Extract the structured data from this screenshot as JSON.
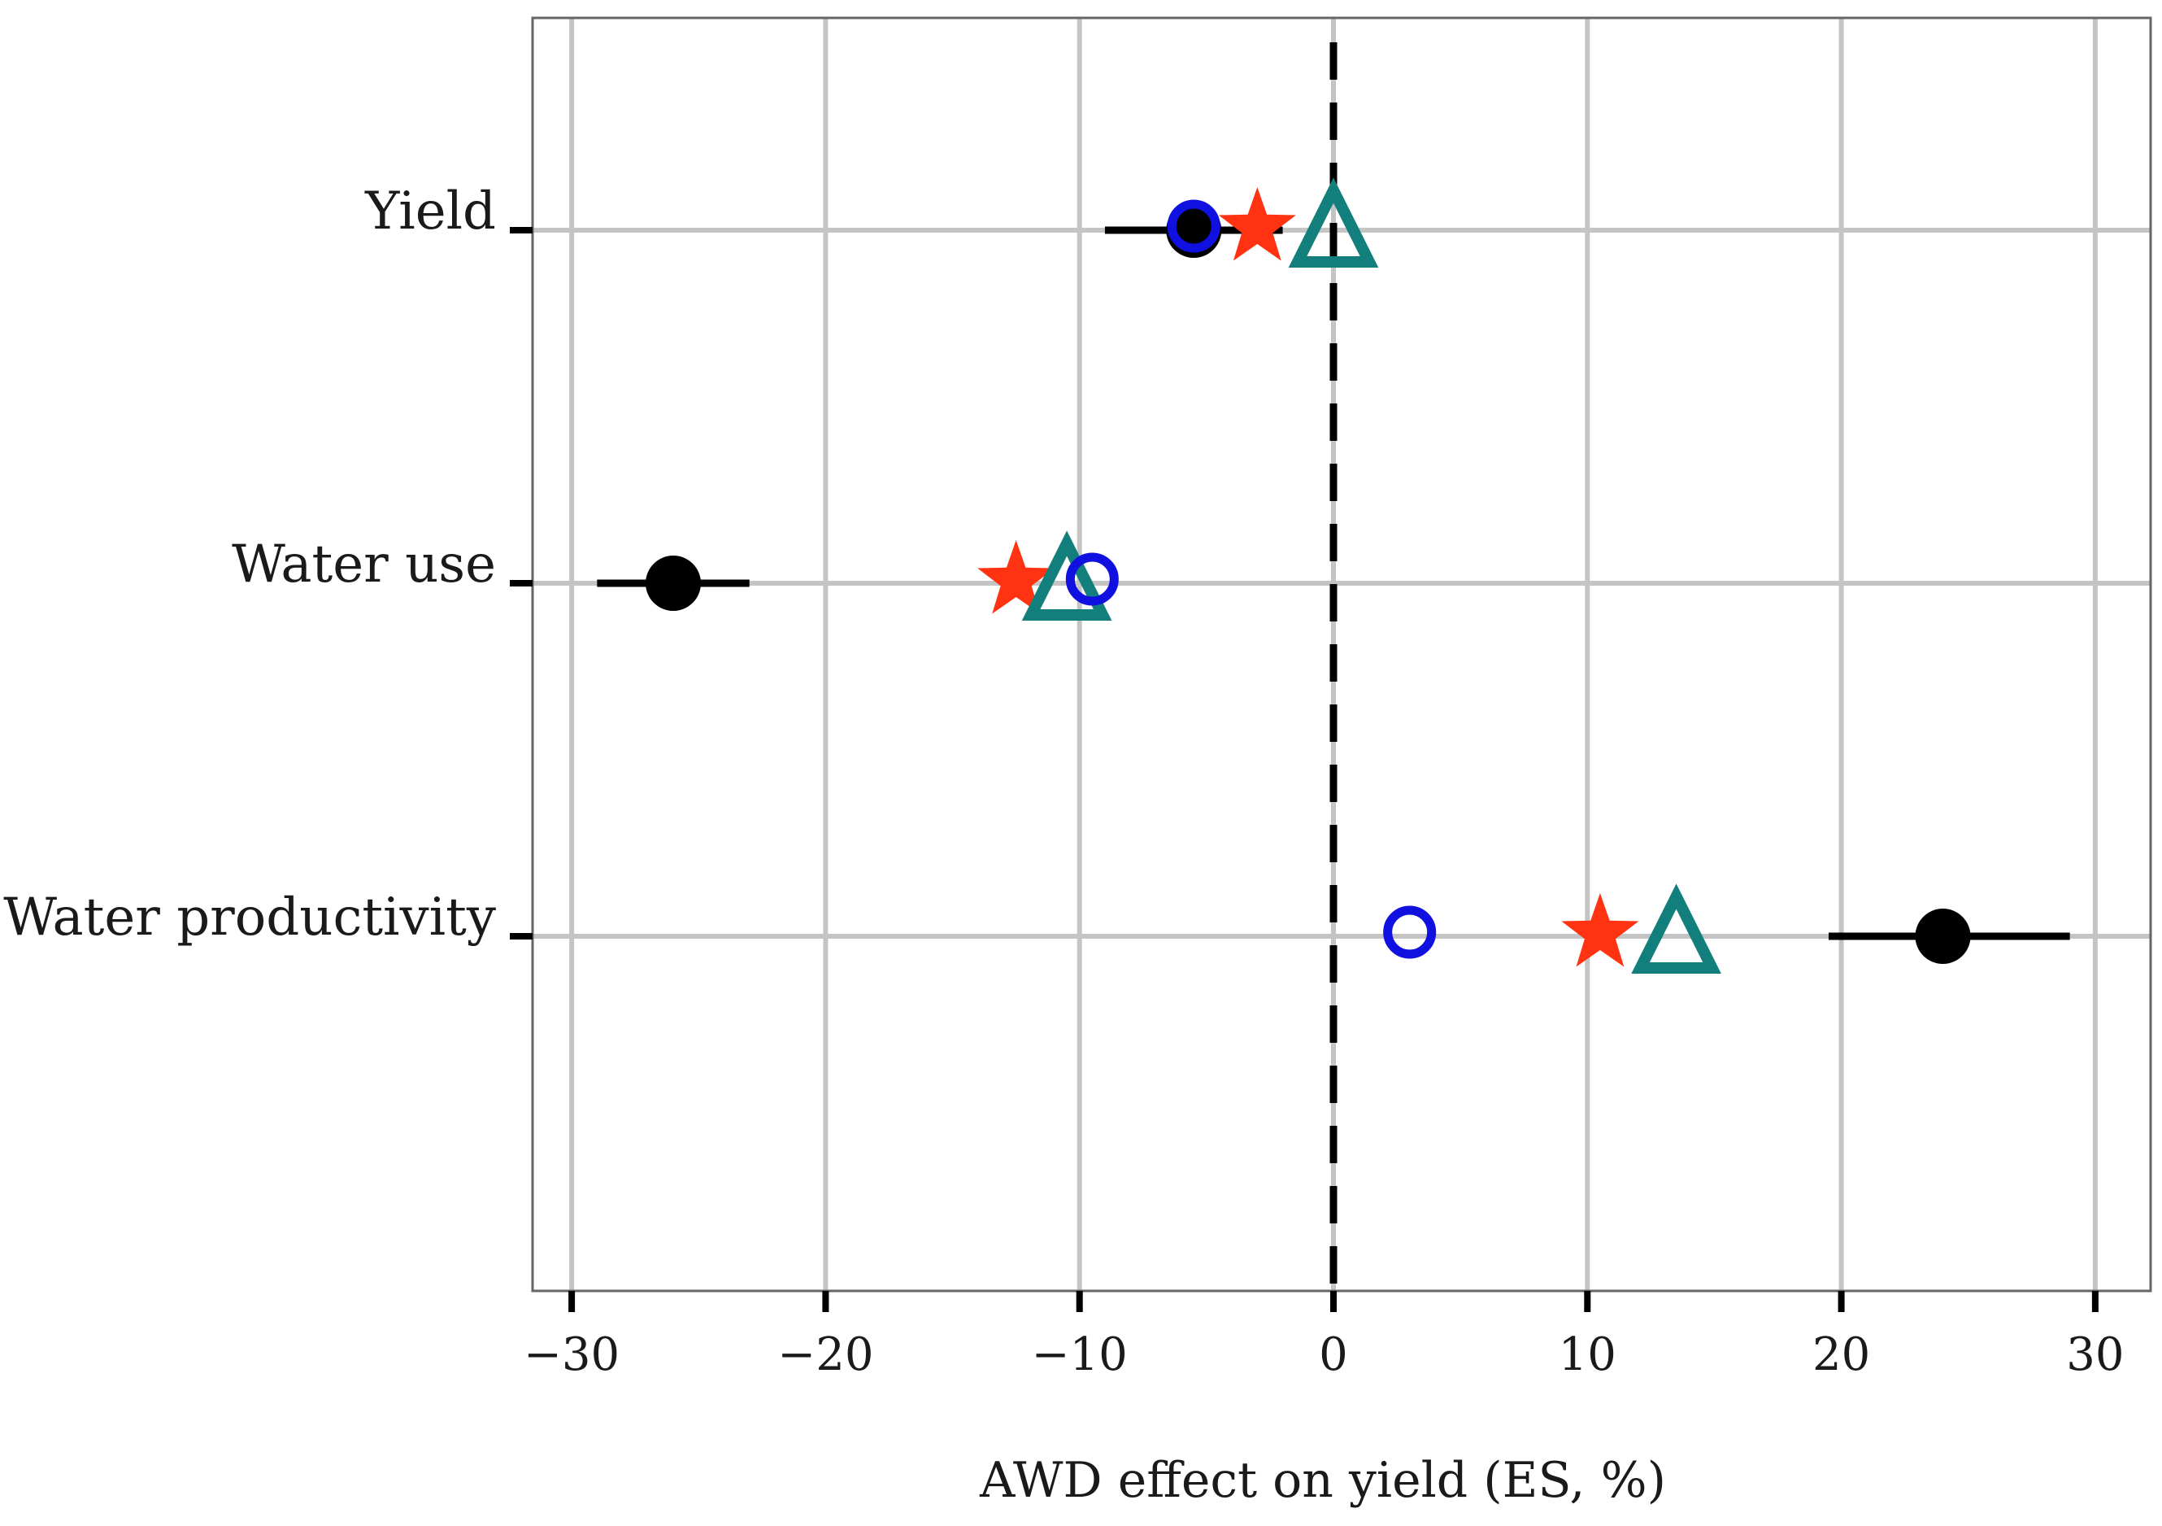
{
  "chart_data": {
    "type": "scatter",
    "subtype": "forest-plot",
    "title": "",
    "xlabel": "AWD effect on yield (ES, %)",
    "ylabel": "",
    "xlim": [
      -31.5,
      32
    ],
    "xticks": [
      -30,
      -20,
      -10,
      0,
      10,
      20,
      30
    ],
    "xtick_labels": [
      "−30",
      "−20",
      "−10",
      "0",
      "10",
      "20",
      "30"
    ],
    "categories": [
      "Yield",
      "Water use",
      "Water productivity"
    ],
    "reference_line": {
      "x": 0,
      "style": "dashed",
      "color": "#000000"
    },
    "grid": true,
    "legend": "none",
    "series": [
      {
        "name": "filled-circle",
        "marker": "circle-filled",
        "color": "#000000",
        "values": [
          -5.5,
          -26,
          24
        ],
        "ci_low": [
          -9,
          -29,
          19.5
        ],
        "ci_high": [
          -2,
          -23,
          29
        ]
      },
      {
        "name": "open-circle",
        "marker": "circle-open",
        "color": "#1010e0",
        "values": [
          -5.5,
          -9.5,
          3
        ]
      },
      {
        "name": "star",
        "marker": "star",
        "color": "#ff3311",
        "values": [
          -3,
          -12.5,
          10.5
        ]
      },
      {
        "name": "triangle",
        "marker": "triangle-open",
        "color": "#137f7c",
        "values": [
          0,
          -10.5,
          13.5
        ]
      }
    ]
  }
}
